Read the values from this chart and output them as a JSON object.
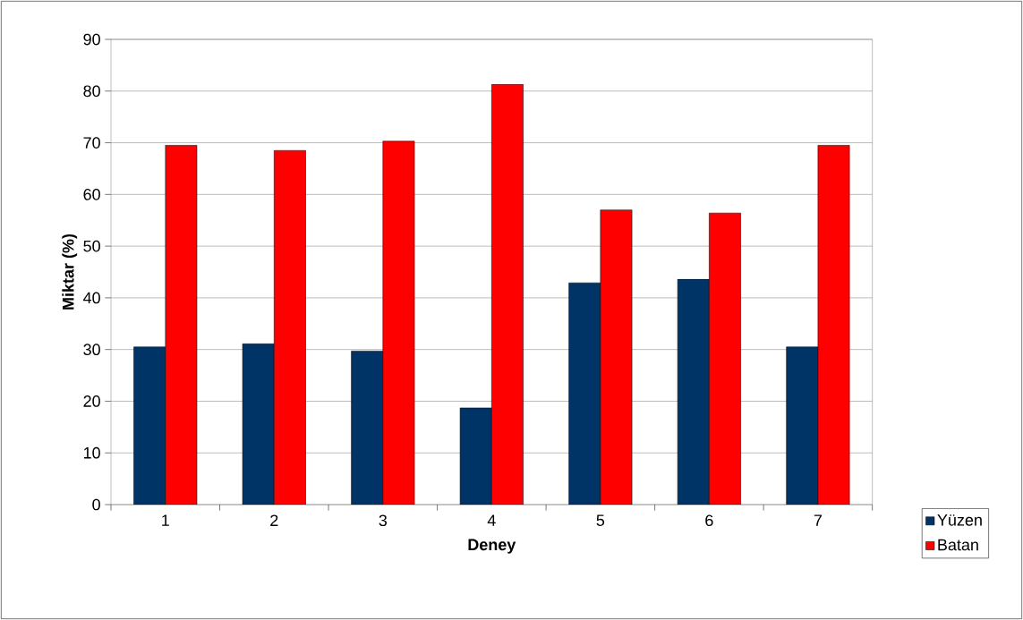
{
  "chart_data": {
    "type": "bar",
    "xlabel": "Deney",
    "ylabel": "Miktar (%)",
    "categories": [
      "1",
      "2",
      "3",
      "4",
      "5",
      "6",
      "7"
    ],
    "series": [
      {
        "name": "Yüzen",
        "color": "#003366",
        "values": [
          30.5,
          31.1,
          29.7,
          18.7,
          42.9,
          43.6,
          30.5
        ]
      },
      {
        "name": "Batan",
        "color": "#ff0000",
        "values": [
          69.5,
          68.5,
          70.3,
          81.3,
          57.0,
          56.4,
          69.5
        ]
      }
    ],
    "ylim": [
      0,
      90
    ],
    "yticks": [
      0,
      10,
      20,
      30,
      40,
      50,
      60,
      70,
      80,
      90
    ],
    "grid": "y",
    "legend": "bottom right"
  }
}
